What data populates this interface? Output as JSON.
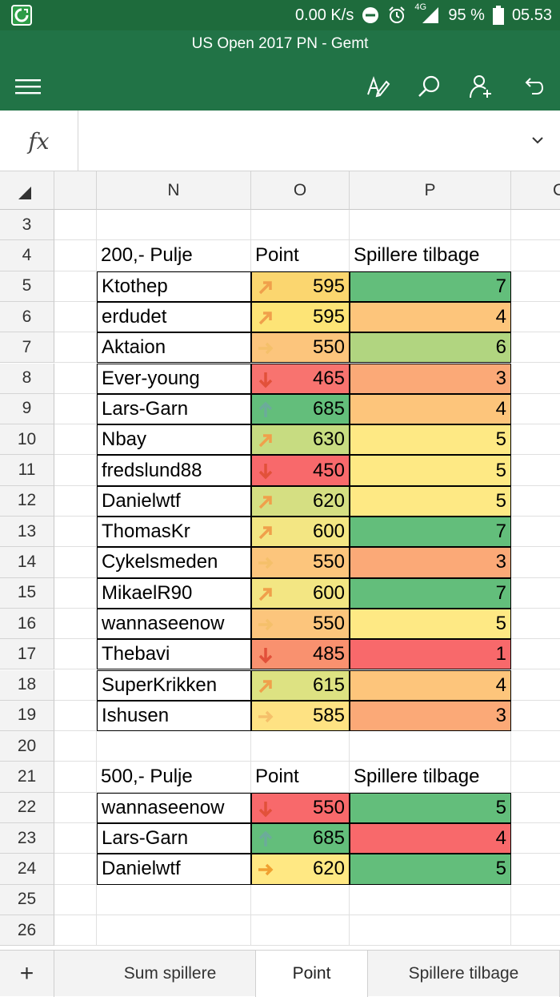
{
  "status": {
    "speed": "0.00 K/s",
    "network": "4G",
    "battery": "95 %",
    "time": "05.53"
  },
  "title": "US Open 2017 PN - Gemt",
  "formula": {
    "label": "fx",
    "value": ""
  },
  "columns": [
    "N",
    "O",
    "P",
    "C"
  ],
  "rows": [
    {
      "num": "3"
    },
    {
      "num": "4",
      "name": "200,- Pulje",
      "point": "Point",
      "spillere": "Spillere tilbage",
      "header": true
    },
    {
      "num": "5",
      "name": "Ktothep",
      "point": "595",
      "spillere": "7",
      "pcolor": "#fbd66f",
      "scolor": "#63be7b",
      "arrow": "up-right",
      "acolor": "#f0a04b"
    },
    {
      "num": "6",
      "name": "erdudet",
      "point": "595",
      "spillere": "4",
      "pcolor": "#fde476",
      "scolor": "#fdc57b",
      "arrow": "up-right",
      "acolor": "#f0a04b"
    },
    {
      "num": "7",
      "name": "Aktaion",
      "point": "550",
      "spillere": "6",
      "pcolor": "#fcc57c",
      "scolor": "#b1d580",
      "arrow": "right",
      "acolor": "#f5c06a"
    },
    {
      "num": "8",
      "name": "Ever-young",
      "point": "465",
      "spillere": "3",
      "pcolor": "#f8736f",
      "scolor": "#fba977",
      "arrow": "down",
      "acolor": "#e2513a"
    },
    {
      "num": "9",
      "name": "Lars-Garn",
      "point": "685",
      "spillere": "4",
      "pcolor": "#63be7b",
      "scolor": "#fdc57b",
      "arrow": "up",
      "acolor": "#6cab9a"
    },
    {
      "num": "10",
      "name": "Nbay",
      "point": "630",
      "spillere": "5",
      "pcolor": "#c7dc81",
      "scolor": "#fee984",
      "arrow": "up-right",
      "acolor": "#f0a04b"
    },
    {
      "num": "11",
      "name": "fredslund88",
      "point": "450",
      "spillere": "5",
      "pcolor": "#f8696b",
      "scolor": "#fee984",
      "arrow": "down",
      "acolor": "#e2513a"
    },
    {
      "num": "12",
      "name": "Danielwtf",
      "point": "620",
      "spillere": "5",
      "pcolor": "#d5df82",
      "scolor": "#fee984",
      "arrow": "up-right",
      "acolor": "#f0a04b"
    },
    {
      "num": "13",
      "name": "ThomasKr",
      "point": "600",
      "spillere": "7",
      "pcolor": "#f3e683",
      "scolor": "#63be7b",
      "arrow": "up-right",
      "acolor": "#f0a04b"
    },
    {
      "num": "14",
      "name": "Cykelsmeden",
      "point": "550",
      "spillere": "3",
      "pcolor": "#fcc57c",
      "scolor": "#fba977",
      "arrow": "right",
      "acolor": "#f5c06a"
    },
    {
      "num": "15",
      "name": "MikaelR90",
      "point": "600",
      "spillere": "7",
      "pcolor": "#f3e683",
      "scolor": "#63be7b",
      "arrow": "up-right",
      "acolor": "#f0a04b"
    },
    {
      "num": "16",
      "name": "wannaseenow",
      "point": "550",
      "spillere": "5",
      "pcolor": "#fcc57c",
      "scolor": "#fee984",
      "arrow": "right",
      "acolor": "#f5c06a"
    },
    {
      "num": "17",
      "name": "Thebavi",
      "point": "485",
      "spillere": "1",
      "pcolor": "#f9916f",
      "scolor": "#f8696b",
      "arrow": "down",
      "acolor": "#e2513a"
    },
    {
      "num": "18",
      "name": "SuperKrikken",
      "point": "615",
      "spillere": "4",
      "pcolor": "#dde282",
      "scolor": "#fdc57b",
      "arrow": "up-right",
      "acolor": "#f0a04b"
    },
    {
      "num": "19",
      "name": "Ishusen",
      "point": "585",
      "spillere": "3",
      "pcolor": "#fee283",
      "scolor": "#fba977",
      "arrow": "right",
      "acolor": "#f5c06a"
    },
    {
      "num": "20"
    },
    {
      "num": "21",
      "name": "500,- Pulje",
      "point": "Point",
      "spillere": "Spillere tilbage",
      "header": true
    },
    {
      "num": "22",
      "name": "wannaseenow",
      "point": "550",
      "spillere": "5",
      "pcolor": "#f8696b",
      "scolor": "#63be7b",
      "arrow": "down",
      "acolor": "#e2513a"
    },
    {
      "num": "23",
      "name": "Lars-Garn",
      "point": "685",
      "spillere": "4",
      "pcolor": "#63be7b",
      "scolor": "#f8696b",
      "arrow": "up",
      "acolor": "#6cab9a"
    },
    {
      "num": "24",
      "name": "Danielwtf",
      "point": "620",
      "spillere": "5",
      "pcolor": "#ffe883",
      "scolor": "#63be7b",
      "arrow": "right",
      "acolor": "#f0a030"
    },
    {
      "num": "25"
    },
    {
      "num": "26"
    }
  ],
  "tabs": [
    {
      "label": "+",
      "icon": "plus-icon"
    },
    {
      "label": "Sum spillere"
    },
    {
      "label": "Point",
      "active": true
    },
    {
      "label": "Spillere tilbage"
    }
  ]
}
